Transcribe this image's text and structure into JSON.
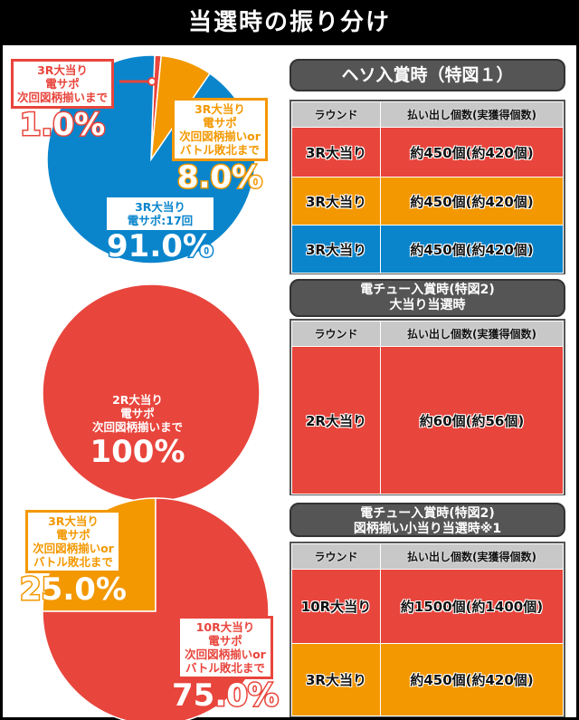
{
  "title": "当選時の振り分け",
  "colors": {
    "red": "#e8453c",
    "orange": "#f39800",
    "blue": "#0a85cc",
    "header_gray": "#c8c8c8",
    "banner": "#555555"
  },
  "chart_data": [
    {
      "type": "pie",
      "slices": [
        {
          "label": "3R大当り 電サポ 次回図柄揃いまで",
          "value": 1.0,
          "text": "1.0%",
          "color": "#e8453c"
        },
        {
          "label": "3R大当り 電サポ 次回図柄揃いorバトル敗北まで",
          "value": 8.0,
          "text": "8.0%",
          "color": "#f39800"
        },
        {
          "label": "3R大当り 電サポ:17回",
          "value": 91.0,
          "text": "91.0%",
          "color": "#0a85cc"
        }
      ]
    },
    {
      "type": "pie",
      "slices": [
        {
          "label": "2R大当り 電サポ 次回図柄揃いまで",
          "value": 100,
          "text": "100%",
          "color": "#e8453c"
        }
      ]
    },
    {
      "type": "pie",
      "slices": [
        {
          "label": "3R大当り 電サポ 次回図柄揃いorバトル敗北まで",
          "value": 25.0,
          "text": "25.0%",
          "color": "#f39800"
        },
        {
          "label": "10R大当り 電サポ 次回図柄揃いorバトル敗北まで",
          "value": 75.0,
          "text": "75.0%",
          "color": "#e8453c"
        }
      ]
    }
  ],
  "labels": {
    "p1a": [
      "3R大当り",
      "電サポ",
      "次回図柄揃いまで"
    ],
    "p1b": [
      "3R大当り",
      "電サポ",
      "次回図柄揃いor",
      "バトル敗北まで"
    ],
    "p1c": [
      "3R大当り",
      "電サポ:17回"
    ],
    "p2a": [
      "2R大当り",
      "電サポ",
      "次回図柄揃いまで"
    ],
    "p3a": [
      "3R大当り",
      "電サポ",
      "次回図柄揃いor",
      "バトル敗北まで"
    ],
    "p3b": [
      "10R大当り",
      "電サポ",
      "次回図柄揃いor",
      "バトル敗北まで"
    ]
  },
  "tables": [
    {
      "banner": [
        "ヘソ入賞時（特図１）"
      ],
      "header": [
        "ラウンド",
        "払い出し個数(実獲得個数)"
      ],
      "rows": [
        [
          "3R大当り",
          "約450個(約420個)",
          "#e8453c"
        ],
        [
          "3R大当り",
          "約450個(約420個)",
          "#f39800"
        ],
        [
          "3R大当り",
          "約450個(約420個)",
          "#0a85cc"
        ]
      ]
    },
    {
      "banner": [
        "電チュー入賞時(特図2)",
        "大当り当選時"
      ],
      "header": [
        "ラウンド",
        "払い出し個数(実獲得個数)"
      ],
      "rows": [
        [
          "2R大当り",
          "約60個(約56個)",
          "#e8453c"
        ]
      ]
    },
    {
      "banner": [
        "電チュー入賞時(特図2)",
        "図柄揃い小当り当選時※1"
      ],
      "header": [
        "ラウンド",
        "払い出し個数(実獲得個数)"
      ],
      "rows": [
        [
          "10R大当り",
          "約1500個(約1400個)",
          "#e8453c"
        ],
        [
          "3R大当り",
          "約450個(約420個)",
          "#f39800"
        ]
      ]
    }
  ]
}
